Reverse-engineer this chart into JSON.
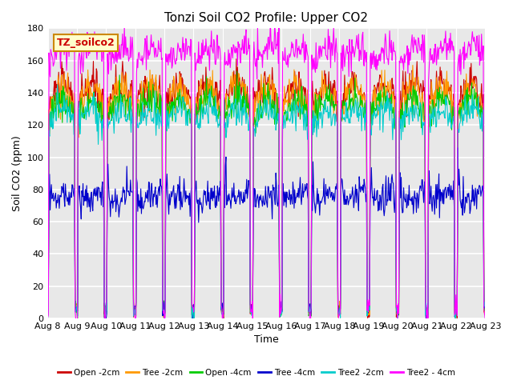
{
  "title": "Tonzi Soil CO2 Profile: Upper CO2",
  "ylabel": "Soil CO2 (ppm)",
  "xlabel": "Time",
  "annotation": "TZ_soilco2",
  "ylim": [
    0,
    180
  ],
  "yticks": [
    0,
    20,
    40,
    60,
    80,
    100,
    120,
    140,
    160,
    180
  ],
  "xtick_labels": [
    "Aug 8",
    "Aug 9",
    "Aug 10",
    "Aug 11",
    "Aug 12",
    "Aug 13",
    "Aug 14",
    "Aug 15",
    "Aug 16",
    "Aug 17",
    "Aug 18",
    "Aug 19",
    "Aug 20",
    "Aug 21",
    "Aug 22",
    "Aug 23"
  ],
  "legend_entries": [
    "Open -2cm",
    "Tree -2cm",
    "Open -4cm",
    "Tree -4cm",
    "Tree2 -2cm",
    "Tree2 - 4cm"
  ],
  "line_colors": [
    "#cc0000",
    "#ff9900",
    "#00cc00",
    "#0000cc",
    "#00cccc",
    "#ff00ff"
  ],
  "background_color": "#e8e8e8",
  "grid_color": "#ffffff",
  "n_days": 15,
  "n_points_per_day": 48
}
